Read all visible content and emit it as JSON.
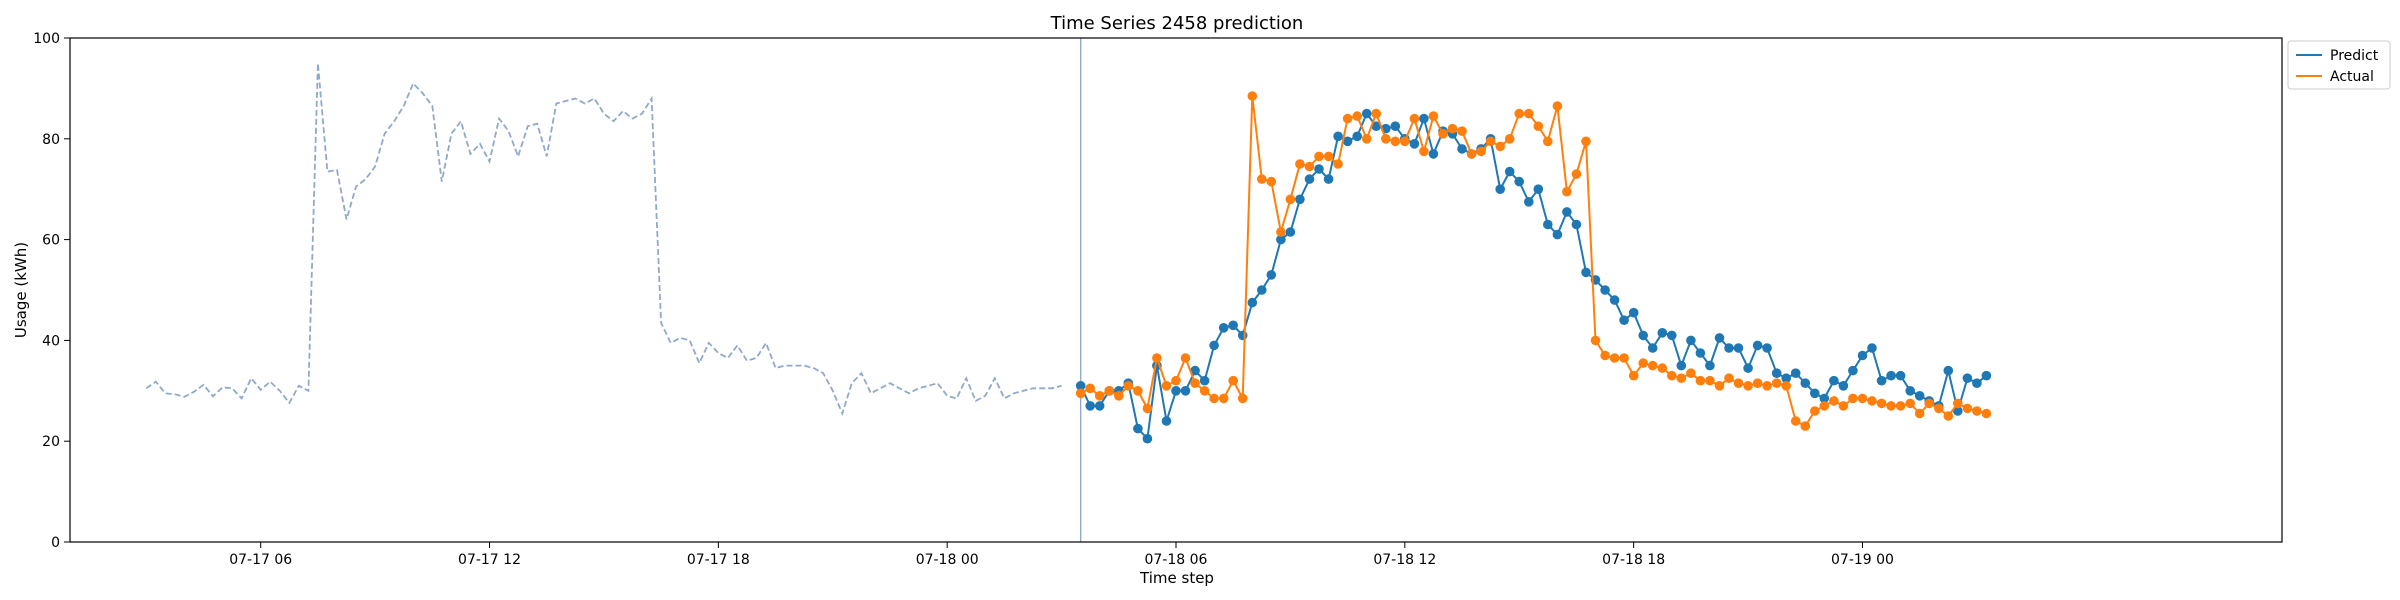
{
  "chart_data": {
    "type": "line",
    "title": "Time Series 2458 prediction",
    "xlabel": "Time step",
    "ylabel": "Usage (kWh)",
    "ylim": [
      0,
      100
    ],
    "xlim": [
      "2023-07-17 01:00",
      "2023-07-19 11:00"
    ],
    "yticks": [
      0,
      20,
      40,
      60,
      80,
      100
    ],
    "xticks": [
      {
        "t": "2023-07-17 06:00",
        "label": "07-17 06"
      },
      {
        "t": "2023-07-17 12:00",
        "label": "07-17 12"
      },
      {
        "t": "2023-07-17 18:00",
        "label": "07-17 18"
      },
      {
        "t": "2023-07-18 00:00",
        "label": "07-18 00"
      },
      {
        "t": "2023-07-18 06:00",
        "label": "07-18 06"
      },
      {
        "t": "2023-07-18 12:00",
        "label": "07-18 12"
      },
      {
        "t": "2023-07-18 18:00",
        "label": "07-18 18"
      },
      {
        "t": "2023-07-19 00:00",
        "label": "07-19 00"
      }
    ],
    "grid": false,
    "legend_position": "top-right",
    "forecast_start": "2023-07-18 03:30",
    "history": {
      "start": "2023-07-17 03:00",
      "step_minutes": 15,
      "color": "#8fa9cc",
      "values": [
        30.5,
        31.8,
        29.5,
        29.3,
        28.8,
        29.8,
        31.2,
        28.9,
        30.7,
        30.5,
        28.5,
        32.5,
        30.2,
        31.8,
        30.0,
        27.6,
        31.0,
        30.0,
        95.0,
        73.5,
        73.8,
        64.0,
        70.5,
        72.0,
        74.5,
        81.0,
        83.5,
        86.5,
        91.0,
        89.0,
        86.5,
        71.5,
        81.0,
        83.5,
        77.0,
        79.0,
        75.5,
        84.0,
        81.5,
        76.5,
        82.5,
        83.0,
        76.5,
        87.0,
        87.5,
        88.0,
        87.0,
        88.0,
        85.0,
        83.5,
        85.5,
        84.0,
        85.0,
        88.0,
        43.5,
        39.5,
        40.5,
        40.0,
        35.5,
        39.5,
        37.5,
        36.5,
        39.0,
        36.0,
        36.5,
        39.5,
        34.5,
        35.0,
        35.0,
        35.0,
        34.5,
        33.5,
        30.0,
        25.5,
        31.5,
        33.5,
        29.5,
        30.5,
        31.5,
        30.5,
        29.5,
        30.5,
        31.0,
        31.5,
        29.0,
        28.5,
        32.5,
        28.0,
        29.0,
        32.5,
        28.5,
        29.5,
        30.0,
        30.5,
        30.5,
        30.5,
        31.0
      ]
    },
    "series": [
      {
        "name": "Predict",
        "color": "#1f77b4",
        "start": "2023-07-18 03:30",
        "step_minutes": 15,
        "values": [
          31.0,
          27.0,
          27.0,
          30.0,
          30.0,
          31.5,
          22.5,
          20.5,
          35.0,
          24.0,
          30.0,
          30.0,
          34.0,
          32.0,
          39.0,
          42.5,
          43.0,
          41.0,
          47.5,
          50.0,
          53.0,
          60.0,
          61.5,
          68.0,
          72.0,
          74.0,
          72.0,
          80.5,
          79.5,
          80.5,
          85.0,
          82.5,
          82.0,
          82.5,
          80.0,
          79.0,
          84.0,
          77.0,
          81.5,
          81.0,
          78.0,
          77.0,
          78.0,
          80.0,
          70.0,
          73.5,
          71.5,
          67.5,
          70.0,
          63.0,
          61.0,
          65.5,
          63.0,
          53.5,
          52.0,
          50.0,
          48.0,
          44.0,
          45.5,
          41.0,
          38.5,
          41.5,
          41.0,
          35.0,
          40.0,
          37.5,
          35.0,
          40.5,
          38.5,
          38.5,
          34.5,
          39.0,
          38.5,
          33.5,
          32.5,
          33.5,
          31.5,
          29.5,
          28.5,
          32.0,
          31.0,
          34.0,
          37.0,
          38.5,
          32.0,
          33.0,
          33.0,
          30.0,
          29.0,
          28.0,
          27.0,
          34.0,
          26.0,
          32.5,
          31.5,
          33.0
        ]
      },
      {
        "name": "Actual",
        "color": "#ff7f0e",
        "start": "2023-07-18 03:30",
        "step_minutes": 15,
        "values": [
          29.5,
          30.5,
          29.0,
          30.0,
          29.0,
          31.0,
          30.0,
          26.5,
          36.5,
          31.0,
          32.0,
          36.5,
          31.5,
          30.0,
          28.5,
          28.5,
          32.0,
          28.5,
          88.5,
          72.0,
          71.5,
          61.5,
          68.0,
          75.0,
          74.5,
          76.5,
          76.5,
          75.0,
          84.0,
          84.5,
          80.0,
          85.0,
          80.0,
          79.5,
          79.5,
          84.0,
          77.5,
          84.5,
          81.0,
          82.0,
          81.5,
          77.0,
          77.5,
          79.5,
          78.5,
          80.0,
          85.0,
          85.0,
          82.5,
          79.5,
          86.5,
          69.5,
          73.0,
          79.5,
          40.0,
          37.0,
          36.5,
          36.5,
          33.0,
          35.5,
          35.0,
          34.5,
          33.0,
          32.5,
          33.5,
          32.0,
          32.0,
          31.0,
          32.5,
          31.5,
          31.0,
          31.5,
          31.0,
          31.5,
          31.0,
          24.0,
          23.0,
          26.0,
          27.0,
          28.0,
          27.0,
          28.5,
          28.5,
          28.0,
          27.5,
          27.0,
          27.0,
          27.5,
          25.5,
          27.5,
          26.5,
          25.0,
          27.5,
          26.5,
          26.0,
          25.5
        ]
      }
    ]
  }
}
